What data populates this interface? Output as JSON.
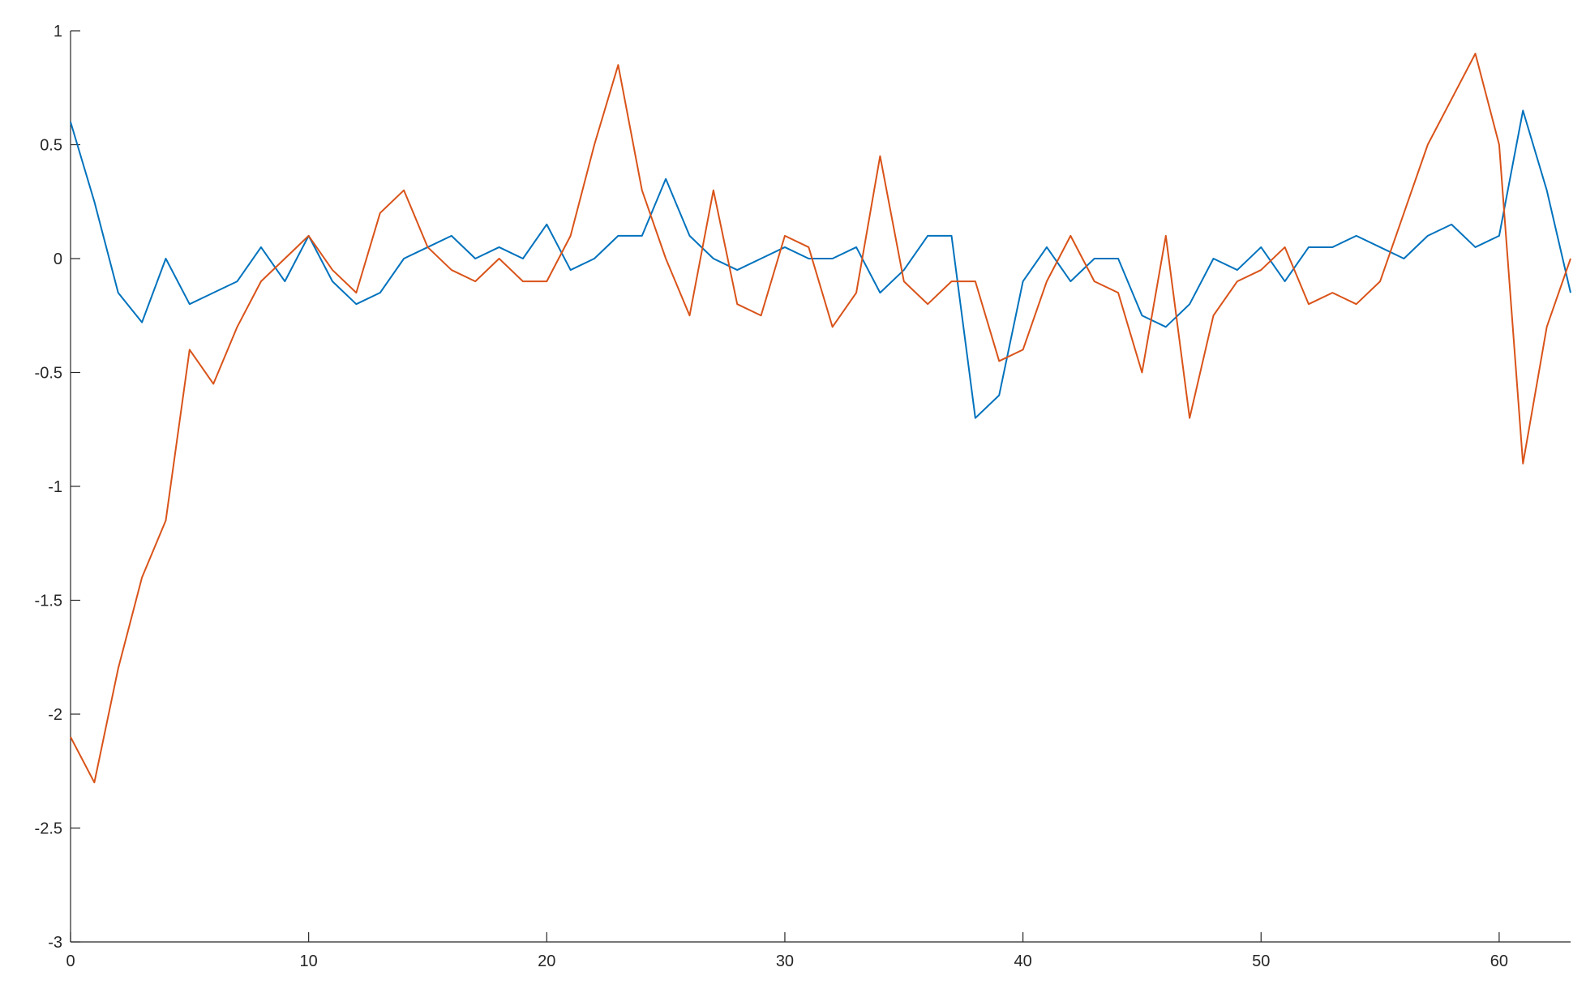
{
  "chart_data": {
    "type": "line",
    "x": [
      0,
      1,
      2,
      3,
      4,
      5,
      6,
      7,
      8,
      9,
      10,
      11,
      12,
      13,
      14,
      15,
      16,
      17,
      18,
      19,
      20,
      21,
      22,
      23,
      24,
      25,
      26,
      27,
      28,
      29,
      30,
      31,
      32,
      33,
      34,
      35,
      36,
      37,
      38,
      39,
      40,
      41,
      42,
      43,
      44,
      45,
      46,
      47,
      48,
      49,
      50,
      51,
      52,
      53,
      54,
      55,
      56,
      57,
      58,
      59,
      60,
      61,
      62,
      63
    ],
    "series": [
      {
        "color": "#0072bd",
        "values": [
          0.6,
          0.25,
          -0.15,
          -0.28,
          0.0,
          -0.2,
          -0.15,
          -0.1,
          0.05,
          -0.1,
          0.1,
          -0.1,
          -0.2,
          -0.15,
          0.0,
          0.05,
          0.1,
          0.0,
          0.05,
          0.0,
          0.15,
          -0.05,
          0.0,
          0.1,
          0.1,
          0.35,
          0.1,
          0.0,
          -0.05,
          0.0,
          0.05,
          0.0,
          0.0,
          0.05,
          -0.15,
          -0.05,
          0.1,
          0.1,
          -0.7,
          -0.6,
          -0.1,
          0.05,
          -0.1,
          0.0,
          0.0,
          -0.25,
          -0.3,
          -0.2,
          0.0,
          -0.05,
          0.05,
          -0.1,
          0.05,
          0.05,
          0.1,
          0.05,
          0.0,
          0.1,
          0.15,
          0.05,
          0.1,
          0.65,
          0.3,
          -0.15
        ]
      },
      {
        "color": "#d95319",
        "values": [
          -2.1,
          -2.3,
          -1.8,
          -1.4,
          -1.15,
          -0.4,
          -0.55,
          -0.3,
          -0.1,
          0.0,
          0.1,
          -0.05,
          -0.15,
          0.2,
          0.3,
          0.05,
          -0.05,
          -0.1,
          0.0,
          -0.1,
          -0.1,
          0.1,
          0.5,
          0.85,
          0.3,
          0.0,
          -0.25,
          0.3,
          -0.2,
          -0.25,
          0.1,
          0.05,
          -0.3,
          -0.15,
          0.45,
          -0.1,
          -0.2,
          -0.1,
          -0.1,
          -0.45,
          -0.4,
          -0.1,
          0.1,
          -0.1,
          -0.15,
          -0.5,
          0.1,
          -0.7,
          -0.25,
          -0.1,
          -0.05,
          0.05,
          -0.2,
          -0.15,
          -0.2,
          -0.1,
          0.2,
          0.5,
          0.7,
          0.9,
          0.5,
          -0.9,
          -0.3,
          0.0
        ]
      }
    ],
    "xlim": [
      0,
      63
    ],
    "xticks": [
      0,
      10,
      20,
      30,
      40,
      50,
      60
    ],
    "ylim": [
      -3,
      1
    ],
    "yticks": [
      -3,
      -2.5,
      -2,
      -1.5,
      -1,
      -0.5,
      0,
      0.5,
      1
    ]
  }
}
